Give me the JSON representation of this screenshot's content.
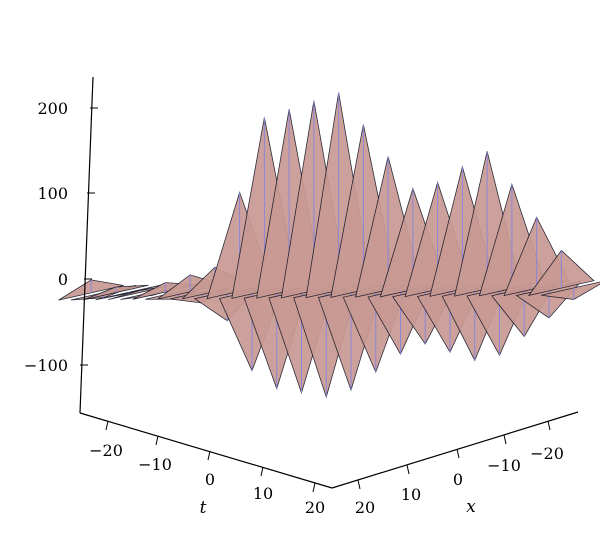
{
  "chart_data": {
    "type": "surface3d",
    "title": "",
    "axes": {
      "z": {
        "ticks": [
          -100,
          0,
          100,
          200
        ],
        "tick_labels": [
          "−100",
          "0",
          "100",
          "200"
        ],
        "range": [
          -160,
          230
        ]
      },
      "t": {
        "label": "t",
        "ticks": [
          -20,
          -10,
          0,
          10,
          20
        ],
        "tick_labels": [
          "−20",
          "−10",
          "0",
          "10",
          "20"
        ],
        "range": [
          -25,
          25
        ]
      },
      "x": {
        "label": "x",
        "ticks": [
          20,
          10,
          0,
          -10,
          -20
        ],
        "tick_labels": [
          "20",
          "10",
          "0",
          "−10",
          "−20"
        ],
        "range": [
          -25,
          25
        ]
      }
    },
    "surface": {
      "fill_color": "#c99a93",
      "mesh_color": "#1a1a2a",
      "highlight_color": "#8c86d8",
      "profile": [
        {
          "t": -25,
          "x": 25,
          "z": -15
        },
        {
          "t": -12,
          "x": 12,
          "z": 30
        },
        {
          "t": -8,
          "x": 5,
          "z": 200
        },
        {
          "t": 0,
          "x": -2,
          "z": 230
        },
        {
          "t": 8,
          "x": -8,
          "z": 110
        },
        {
          "t": 15,
          "x": -15,
          "z": 160
        },
        {
          "t": 25,
          "x": -25,
          "z": 5
        }
      ]
    },
    "grid": false,
    "legend": "none"
  }
}
